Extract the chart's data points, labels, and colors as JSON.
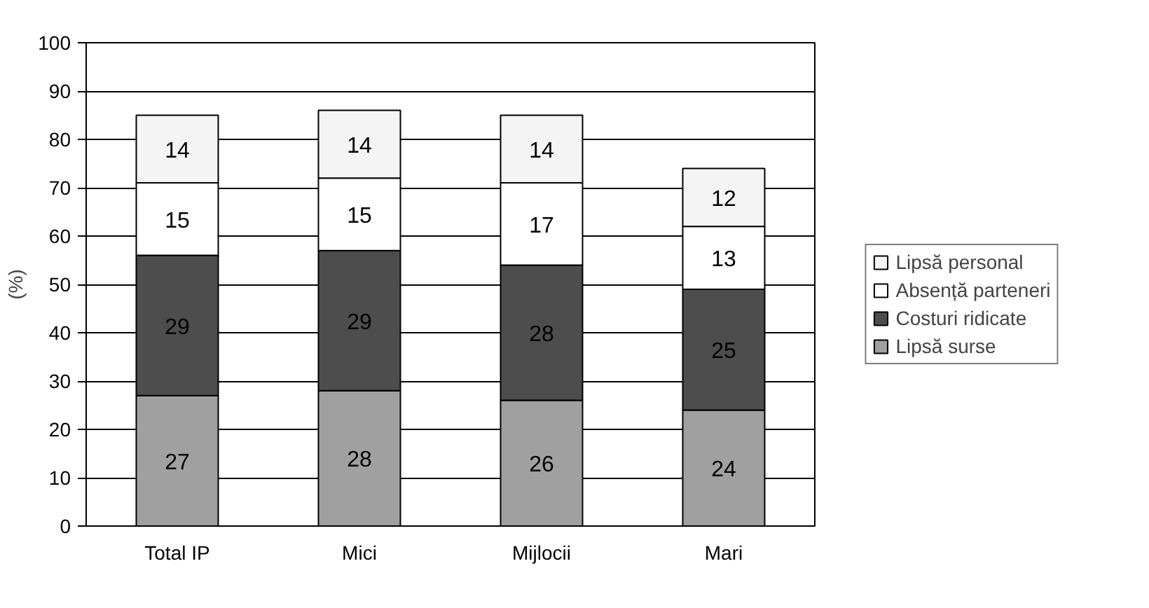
{
  "chart_data": {
    "type": "bar",
    "stacked": true,
    "ylabel": "(%)",
    "categories": [
      "Total IP",
      "Mici",
      "Mijlocii",
      "Mari"
    ],
    "series": [
      {
        "name": "Lipsă surse",
        "color": "#a0a0a0",
        "values": [
          27,
          28,
          26,
          24
        ]
      },
      {
        "name": "Costuri ridicate",
        "color": "#4d4d4d",
        "values": [
          29,
          29,
          28,
          25
        ]
      },
      {
        "name": "Absență parteneri",
        "color": "#ffffff",
        "values": [
          15,
          15,
          17,
          13
        ]
      },
      {
        "name": "Lipsă personal",
        "color": "#f4f4f4",
        "values": [
          14,
          14,
          14,
          12
        ]
      }
    ],
    "ylim": [
      0,
      100
    ],
    "yticks": [
      0,
      10,
      20,
      30,
      40,
      50,
      60,
      70,
      80,
      90,
      100
    ],
    "grid": "y",
    "legend": "right",
    "data_labels": true
  }
}
